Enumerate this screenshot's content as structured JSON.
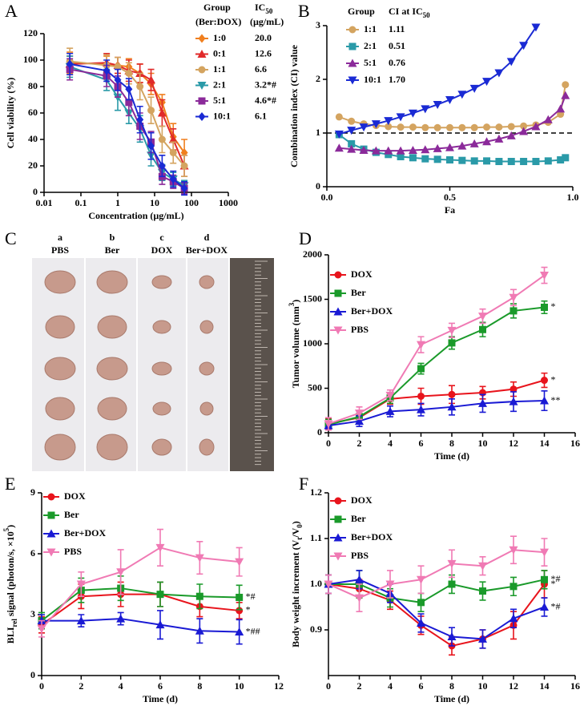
{
  "chart_data": [
    {
      "type": "line",
      "panel": "A",
      "xlabel": "Concentration (µg/mL)",
      "ylabel": [
        "Cell viability (%)"
      ],
      "ylabel_style": [
        ""
      ],
      "log_x": true,
      "xlim": [
        0.01,
        1000
      ],
      "xticks": [
        0.01,
        0.1,
        1,
        10,
        100,
        1000
      ],
      "ylim": [
        0,
        120
      ],
      "yticks": [
        0,
        20,
        40,
        60,
        80,
        100,
        120
      ],
      "legend": "table",
      "legend_title": "Group",
      "legend_subtitle": "(Ber:DOX)",
      "legend_value_title": [
        "IC",
        "50"
      ],
      "legend_value_unit": "(µg/mL)",
      "x": [
        0.05,
        0.5,
        1,
        2,
        4,
        8,
        16,
        32,
        64
      ],
      "series": [
        {
          "name": "1:0",
          "legend_value": "20.0",
          "color": "#f07f1e",
          "marker": "diamond",
          "values": [
            98,
            97,
            96,
            95,
            90,
            82,
            68,
            42,
            30
          ],
          "errors": [
            8,
            6,
            6,
            6,
            7,
            8,
            6,
            10,
            10
          ]
        },
        {
          "name": "0:1",
          "legend_value": "12.6",
          "color": "#e02a2a",
          "marker": "triangle-up",
          "values": [
            97,
            98,
            96,
            92,
            90,
            85,
            60,
            40,
            20
          ],
          "errors": [
            6,
            7,
            6,
            8,
            7,
            8,
            10,
            8,
            8
          ]
        },
        {
          "name": "1:1",
          "legend_value": "6.6",
          "color": "#d4a460",
          "marker": "circle",
          "values": [
            99,
            96,
            95,
            90,
            80,
            62,
            40,
            30,
            20
          ],
          "errors": [
            10,
            8,
            7,
            8,
            10,
            10,
            10,
            8,
            8
          ]
        },
        {
          "name": "2:1",
          "legend_value": "3.2*#",
          "color": "#2a9aa8",
          "marker": "triangle-down",
          "values": [
            95,
            85,
            72,
            60,
            48,
            28,
            15,
            10,
            5
          ],
          "errors": [
            8,
            8,
            10,
            8,
            10,
            8,
            6,
            5,
            4
          ]
        },
        {
          "name": "5:1",
          "legend_value": "4.6*#",
          "color": "#8b2a9a",
          "marker": "square",
          "values": [
            93,
            88,
            80,
            68,
            50,
            38,
            12,
            8,
            3
          ],
          "errors": [
            8,
            8,
            8,
            10,
            10,
            8,
            6,
            5,
            4
          ]
        },
        {
          "name": "10:1",
          "legend_value": "6.1",
          "color": "#1a2ad4",
          "marker": "diamond",
          "values": [
            97,
            92,
            85,
            78,
            55,
            35,
            20,
            10,
            3
          ],
          "errors": [
            8,
            8,
            8,
            8,
            10,
            10,
            8,
            6,
            5
          ]
        }
      ]
    },
    {
      "type": "line",
      "panel": "B",
      "xlabel": "Fa",
      "ylabel": [
        "Combination index (CI) value"
      ],
      "ylabel_style": [
        ""
      ],
      "xlim": [
        0,
        1
      ],
      "xticks": [
        {
          "value": 0,
          "label": "0.0"
        },
        0.5,
        {
          "value": 1,
          "label": "1.0"
        }
      ],
      "ylim": [
        0,
        3
      ],
      "yticks": [
        0,
        1,
        2,
        3
      ],
      "hline": 1,
      "legend": "table",
      "legend_title": "Group",
      "legend_value_title": [
        "CI at IC",
        "50"
      ],
      "series": [
        {
          "name": "1:1",
          "legend_value": "1.11",
          "color": "#d4a460",
          "marker": "circle",
          "x": [
            0.05,
            0.1,
            0.15,
            0.2,
            0.25,
            0.3,
            0.35,
            0.4,
            0.45,
            0.5,
            0.55,
            0.6,
            0.65,
            0.7,
            0.75,
            0.8,
            0.85,
            0.9,
            0.95,
            0.97
          ],
          "values": [
            1.3,
            1.22,
            1.17,
            1.14,
            1.12,
            1.11,
            1.11,
            1.1,
            1.1,
            1.1,
            1.1,
            1.1,
            1.11,
            1.11,
            1.12,
            1.13,
            1.15,
            1.2,
            1.35,
            1.9
          ]
        },
        {
          "name": "2:1",
          "legend_value": "0.51",
          "color": "#2a9aa8",
          "marker": "square",
          "x": [
            0.05,
            0.1,
            0.15,
            0.2,
            0.25,
            0.3,
            0.35,
            0.4,
            0.45,
            0.5,
            0.55,
            0.6,
            0.65,
            0.7,
            0.75,
            0.8,
            0.85,
            0.9,
            0.95,
            0.97
          ],
          "values": [
            0.97,
            0.8,
            0.7,
            0.64,
            0.6,
            0.56,
            0.54,
            0.52,
            0.51,
            0.5,
            0.49,
            0.48,
            0.48,
            0.47,
            0.47,
            0.47,
            0.47,
            0.48,
            0.5,
            0.54
          ]
        },
        {
          "name": "5:1",
          "legend_value": "0.76",
          "color": "#8b2a9a",
          "marker": "triangle-up",
          "x": [
            0.05,
            0.1,
            0.15,
            0.2,
            0.25,
            0.3,
            0.35,
            0.4,
            0.45,
            0.5,
            0.55,
            0.6,
            0.65,
            0.7,
            0.75,
            0.8,
            0.85,
            0.9,
            0.95,
            0.97
          ],
          "values": [
            0.72,
            0.7,
            0.68,
            0.67,
            0.67,
            0.67,
            0.68,
            0.69,
            0.71,
            0.73,
            0.76,
            0.8,
            0.84,
            0.89,
            0.95,
            1.03,
            1.12,
            1.25,
            1.45,
            1.7
          ]
        },
        {
          "name": "10:1",
          "legend_value": "1.70",
          "color": "#1a2ad4",
          "marker": "triangle-down",
          "x": [
            0.05,
            0.1,
            0.15,
            0.2,
            0.25,
            0.3,
            0.35,
            0.4,
            0.45,
            0.5,
            0.55,
            0.6,
            0.65,
            0.7,
            0.75,
            0.8,
            0.85
          ],
          "values": [
            0.98,
            1.05,
            1.11,
            1.17,
            1.23,
            1.3,
            1.37,
            1.45,
            1.53,
            1.62,
            1.72,
            1.83,
            1.96,
            2.12,
            2.33,
            2.63,
            2.97
          ]
        }
      ]
    },
    {
      "type": "line",
      "panel": "D",
      "xlabel": "Time (d)",
      "ylabel": [
        "Tumor volume (mm",
        "3",
        ")"
      ],
      "ylabel_style": [
        "",
        "sup",
        ""
      ],
      "xlim": [
        0,
        16
      ],
      "xticks": [
        0,
        2,
        4,
        6,
        8,
        10,
        12,
        14,
        16
      ],
      "ylim": [
        0,
        2000
      ],
      "yticks": [
        0,
        500,
        1000,
        1500,
        2000
      ],
      "legend": "upper left",
      "x": [
        0,
        2,
        4,
        6,
        8,
        10,
        12,
        14
      ],
      "series": [
        {
          "name": "DOX",
          "color": "#e8141c",
          "marker": "circle",
          "values": [
            100,
            170,
            380,
            410,
            430,
            450,
            490,
            590
          ],
          "errors": [
            60,
            70,
            60,
            90,
            100,
            70,
            80,
            80
          ],
          "annotation": "*"
        },
        {
          "name": "Ber",
          "color": "#1a9a2a",
          "marker": "square",
          "values": [
            90,
            180,
            390,
            720,
            1010,
            1160,
            1370,
            1410
          ],
          "errors": [
            60,
            70,
            60,
            60,
            70,
            80,
            80,
            70
          ],
          "annotation": "*"
        },
        {
          "name": "Ber+DOX",
          "color": "#1a1ad4",
          "marker": "triangle-up",
          "values": [
            80,
            130,
            240,
            260,
            290,
            330,
            350,
            360
          ],
          "errors": [
            50,
            60,
            60,
            70,
            90,
            100,
            110,
            110
          ],
          "annotation": "**"
        },
        {
          "name": "PBS",
          "color": "#f07ab4",
          "marker": "triangle-down",
          "values": [
            100,
            220,
            420,
            990,
            1150,
            1310,
            1520,
            1770
          ],
          "errors": [
            70,
            70,
            60,
            90,
            80,
            80,
            90,
            90
          ]
        }
      ]
    },
    {
      "type": "line",
      "panel": "E",
      "xlabel": "Time (d)",
      "ylabel": [
        "BLI",
        "rel",
        " signal (photon/s, ×10",
        "5",
        ")"
      ],
      "ylabel_style": [
        "",
        "sub",
        "",
        "sup",
        ""
      ],
      "xlim": [
        0,
        12
      ],
      "xticks": [
        0,
        2,
        4,
        6,
        8,
        10,
        12
      ],
      "ylim": [
        0,
        9
      ],
      "yticks": [
        0,
        3,
        6,
        9
      ],
      "legend": "upper left",
      "x": [
        0,
        2,
        4,
        6,
        8,
        10
      ],
      "series": [
        {
          "name": "DOX",
          "color": "#e8141c",
          "marker": "circle",
          "values": [
            2.5,
            3.9,
            4.0,
            4.0,
            3.4,
            3.2
          ],
          "errors": [
            0.4,
            0.6,
            0.6,
            0.6,
            0.5,
            0.4
          ],
          "annotation": "*"
        },
        {
          "name": "Ber",
          "color": "#1a9a2a",
          "marker": "square",
          "values": [
            2.7,
            4.2,
            4.3,
            4.0,
            3.9,
            3.85
          ],
          "errors": [
            0.4,
            0.6,
            0.6,
            0.6,
            0.6,
            0.6
          ],
          "annotation": "*#"
        },
        {
          "name": "Ber+DOX",
          "color": "#1a1ad4",
          "marker": "triangle-up",
          "values": [
            2.7,
            2.7,
            2.8,
            2.5,
            2.2,
            2.15
          ],
          "errors": [
            0.3,
            0.3,
            0.3,
            0.7,
            0.6,
            0.6
          ],
          "annotation": "*##"
        },
        {
          "name": "PBS",
          "color": "#f07ab4",
          "marker": "triangle-down",
          "values": [
            2.3,
            4.5,
            5.1,
            6.3,
            5.8,
            5.6
          ],
          "errors": [
            0.4,
            0.6,
            1.1,
            0.9,
            0.8,
            0.7
          ]
        }
      ]
    },
    {
      "type": "line",
      "panel": "F",
      "xlabel": "Time (d)",
      "ylabel": [
        "Body weight increment (V",
        "t",
        "/V",
        "0",
        ")"
      ],
      "ylabel_style": [
        "",
        "sub",
        "",
        "sub",
        ""
      ],
      "xlim": [
        0,
        16
      ],
      "xticks": [
        0,
        2,
        4,
        6,
        8,
        10,
        12,
        14,
        16
      ],
      "ylim": [
        0.8,
        1.2
      ],
      "yticks": [
        0.9,
        {
          "value": 1.0,
          "label": "1.0"
        },
        1.1,
        1.2
      ],
      "legend": "upper left",
      "x": [
        0,
        2,
        4,
        6,
        8,
        10,
        12,
        14
      ],
      "series": [
        {
          "name": "DOX",
          "color": "#e8141c",
          "marker": "circle",
          "values": [
            1.0,
            0.99,
            0.965,
            0.91,
            0.865,
            0.88,
            0.91,
            1.0
          ],
          "errors": [
            0.02,
            0.02,
            0.02,
            0.02,
            0.02,
            0.02,
            0.03,
            0.03
          ],
          "annotation": "*"
        },
        {
          "name": "Ber",
          "color": "#1a9a2a",
          "marker": "square",
          "values": [
            1.0,
            1.0,
            0.97,
            0.96,
            1.0,
            0.985,
            0.995,
            1.01
          ],
          "errors": [
            0.02,
            0.03,
            0.02,
            0.02,
            0.02,
            0.02,
            0.02,
            0.02
          ],
          "annotation": "*#"
        },
        {
          "name": "Ber+DOX",
          "color": "#1a1ad4",
          "marker": "triangle-up",
          "values": [
            1.0,
            1.01,
            0.98,
            0.915,
            0.885,
            0.88,
            0.925,
            0.95
          ],
          "errors": [
            0.02,
            0.02,
            0.02,
            0.02,
            0.02,
            0.02,
            0.02,
            0.02
          ],
          "annotation": "*#"
        },
        {
          "name": "PBS",
          "color": "#f07ab4",
          "marker": "triangle-down",
          "values": [
            1.0,
            0.97,
            1.0,
            1.01,
            1.045,
            1.04,
            1.075,
            1.07
          ],
          "errors": [
            0.02,
            0.03,
            0.03,
            0.03,
            0.03,
            0.02,
            0.03,
            0.03
          ]
        }
      ]
    }
  ],
  "panel_c": {
    "panel": "C",
    "columns": [
      {
        "letter": "a",
        "label": "PBS"
      },
      {
        "letter": "b",
        "label": "Ber"
      },
      {
        "letter": "c",
        "label": "DOX"
      },
      {
        "letter": "d",
        "label": "Ber+DOX"
      }
    ]
  }
}
